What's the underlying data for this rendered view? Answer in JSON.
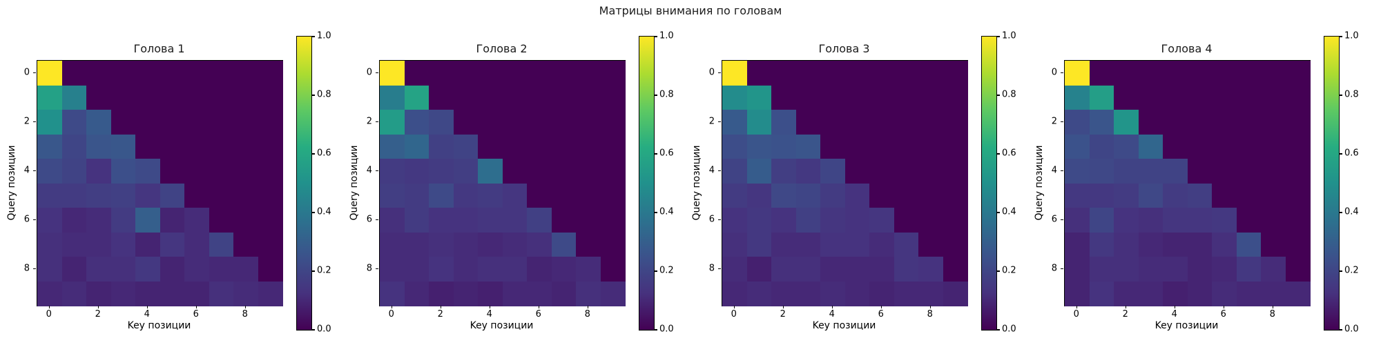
{
  "figure": {
    "title": "Матрицы внимания по головам",
    "background_color": "#ffffff",
    "colormap": "viridis",
    "masked_value_color": "#440154"
  },
  "chart_data": [
    {
      "type": "heatmap",
      "title": "Голова 1",
      "xlabel": "Key позиции",
      "ylabel": "Query позиции",
      "x_tick_labels": [
        "0",
        "2",
        "4",
        "6",
        "8"
      ],
      "y_tick_labels": [
        "0",
        "2",
        "4",
        "6",
        "8"
      ],
      "colorbar_tick_labels": [
        "1.0",
        "0.8",
        "0.6",
        "0.4",
        "0.2",
        "0.0"
      ],
      "vmin": 0.0,
      "vmax": 1.0,
      "matrix": [
        [
          1.0,
          0,
          0,
          0,
          0,
          0,
          0,
          0,
          0,
          0
        ],
        [
          0.57,
          0.43,
          0,
          0,
          0,
          0,
          0,
          0,
          0,
          0
        ],
        [
          0.5,
          0.22,
          0.28,
          0,
          0,
          0,
          0,
          0,
          0,
          0
        ],
        [
          0.27,
          0.2,
          0.26,
          0.27,
          0,
          0,
          0,
          0,
          0,
          0
        ],
        [
          0.22,
          0.19,
          0.13,
          0.24,
          0.22,
          0,
          0,
          0,
          0,
          0
        ],
        [
          0.16,
          0.16,
          0.17,
          0.18,
          0.14,
          0.19,
          0,
          0,
          0,
          0
        ],
        [
          0.13,
          0.1,
          0.11,
          0.16,
          0.3,
          0.09,
          0.11,
          0,
          0,
          0
        ],
        [
          0.12,
          0.11,
          0.11,
          0.13,
          0.09,
          0.14,
          0.11,
          0.19,
          0,
          0
        ],
        [
          0.12,
          0.09,
          0.12,
          0.12,
          0.15,
          0.09,
          0.11,
          0.1,
          0.1,
          0
        ],
        [
          0.1,
          0.11,
          0.09,
          0.1,
          0.09,
          0.09,
          0.09,
          0.12,
          0.11,
          0.1
        ]
      ]
    },
    {
      "type": "heatmap",
      "title": "Голова 2",
      "xlabel": "Key позиции",
      "ylabel": "Query позиции",
      "x_tick_labels": [
        "0",
        "2",
        "4",
        "6",
        "8"
      ],
      "y_tick_labels": [
        "0",
        "2",
        "4",
        "6",
        "8"
      ],
      "colorbar_tick_labels": [
        "1.0",
        "0.8",
        "0.6",
        "0.4",
        "0.2",
        "0.0"
      ],
      "vmin": 0.0,
      "vmax": 1.0,
      "matrix": [
        [
          1.0,
          0,
          0,
          0,
          0,
          0,
          0,
          0,
          0,
          0
        ],
        [
          0.42,
          0.58,
          0,
          0,
          0,
          0,
          0,
          0,
          0,
          0
        ],
        [
          0.55,
          0.24,
          0.21,
          0,
          0,
          0,
          0,
          0,
          0,
          0
        ],
        [
          0.3,
          0.33,
          0.18,
          0.19,
          0,
          0,
          0,
          0,
          0,
          0
        ],
        [
          0.16,
          0.15,
          0.16,
          0.17,
          0.36,
          0,
          0,
          0,
          0,
          0
        ],
        [
          0.17,
          0.16,
          0.22,
          0.15,
          0.16,
          0.14,
          0,
          0,
          0,
          0
        ],
        [
          0.12,
          0.16,
          0.13,
          0.13,
          0.14,
          0.14,
          0.18,
          0,
          0,
          0
        ],
        [
          0.11,
          0.11,
          0.12,
          0.11,
          0.1,
          0.11,
          0.12,
          0.22,
          0,
          0
        ],
        [
          0.11,
          0.11,
          0.13,
          0.11,
          0.12,
          0.12,
          0.09,
          0.1,
          0.11,
          0
        ],
        [
          0.13,
          0.1,
          0.08,
          0.09,
          0.08,
          0.1,
          0.1,
          0.09,
          0.12,
          0.11
        ]
      ]
    },
    {
      "type": "heatmap",
      "title": "Голова 3",
      "xlabel": "Key позиции",
      "ylabel": "Query позиции",
      "x_tick_labels": [
        "0",
        "2",
        "4",
        "6",
        "8"
      ],
      "y_tick_labels": [
        "0",
        "2",
        "4",
        "6",
        "8"
      ],
      "colorbar_tick_labels": [
        "1.0",
        "0.8",
        "0.6",
        "0.4",
        "0.2",
        "0.0"
      ],
      "vmin": 0.0,
      "vmax": 1.0,
      "matrix": [
        [
          1.0,
          0,
          0,
          0,
          0,
          0,
          0,
          0,
          0,
          0
        ],
        [
          0.48,
          0.52,
          0,
          0,
          0,
          0,
          0,
          0,
          0,
          0
        ],
        [
          0.28,
          0.48,
          0.24,
          0,
          0,
          0,
          0,
          0,
          0,
          0
        ],
        [
          0.23,
          0.26,
          0.25,
          0.26,
          0,
          0,
          0,
          0,
          0,
          0
        ],
        [
          0.19,
          0.29,
          0.17,
          0.15,
          0.2,
          0,
          0,
          0,
          0,
          0
        ],
        [
          0.16,
          0.14,
          0.21,
          0.2,
          0.16,
          0.13,
          0,
          0,
          0,
          0
        ],
        [
          0.13,
          0.15,
          0.13,
          0.18,
          0.14,
          0.13,
          0.14,
          0,
          0,
          0
        ],
        [
          0.12,
          0.15,
          0.11,
          0.11,
          0.13,
          0.13,
          0.11,
          0.14,
          0,
          0
        ],
        [
          0.11,
          0.08,
          0.12,
          0.12,
          0.1,
          0.1,
          0.1,
          0.14,
          0.13,
          0
        ],
        [
          0.1,
          0.11,
          0.1,
          0.1,
          0.11,
          0.1,
          0.09,
          0.1,
          0.1,
          0.09
        ]
      ]
    },
    {
      "type": "heatmap",
      "title": "Голова 4",
      "xlabel": "Key позиции",
      "ylabel": "Query позиции",
      "x_tick_labels": [
        "0",
        "2",
        "4",
        "6",
        "8"
      ],
      "y_tick_labels": [
        "0",
        "2",
        "4",
        "6",
        "8"
      ],
      "colorbar_tick_labels": [
        "1.0",
        "0.8",
        "0.6",
        "0.4",
        "0.2",
        "0.0"
      ],
      "vmin": 0.0,
      "vmax": 1.0,
      "matrix": [
        [
          1.0,
          0,
          0,
          0,
          0,
          0,
          0,
          0,
          0,
          0
        ],
        [
          0.44,
          0.56,
          0,
          0,
          0,
          0,
          0,
          0,
          0,
          0
        ],
        [
          0.22,
          0.26,
          0.52,
          0,
          0,
          0,
          0,
          0,
          0,
          0
        ],
        [
          0.25,
          0.2,
          0.22,
          0.33,
          0,
          0,
          0,
          0,
          0,
          0
        ],
        [
          0.22,
          0.21,
          0.19,
          0.19,
          0.19,
          0,
          0,
          0,
          0,
          0
        ],
        [
          0.15,
          0.15,
          0.16,
          0.21,
          0.16,
          0.17,
          0,
          0,
          0,
          0
        ],
        [
          0.12,
          0.2,
          0.13,
          0.12,
          0.14,
          0.14,
          0.15,
          0,
          0,
          0
        ],
        [
          0.09,
          0.15,
          0.12,
          0.1,
          0.09,
          0.09,
          0.12,
          0.24,
          0,
          0
        ],
        [
          0.09,
          0.12,
          0.12,
          0.11,
          0.11,
          0.09,
          0.1,
          0.15,
          0.11,
          0
        ],
        [
          0.09,
          0.13,
          0.1,
          0.1,
          0.08,
          0.09,
          0.11,
          0.1,
          0.1,
          0.1
        ]
      ]
    }
  ]
}
